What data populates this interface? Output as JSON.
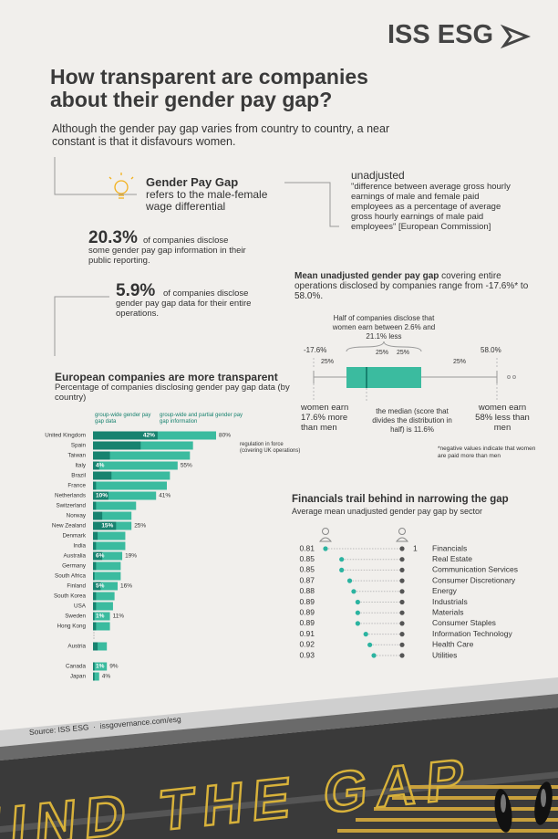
{
  "header": {
    "logo": "ISS ESG",
    "title": "How transparent are companies about their gender pay gap?",
    "intro": "Although the gender pay gap varies from country to country, a near constant is that it disfavours women."
  },
  "definition": {
    "term": "Gender Pay Gap",
    "text": "refers to the male-female wage differential"
  },
  "unadjusted": {
    "term": "unadjusted",
    "text": "\"difference between average gross hourly earnings of male and female paid employees as a percentage of average gross hourly earnings of male paid employees\" [European Commission]"
  },
  "stats": [
    {
      "figure": "20.3%",
      "text": "of companies disclose some gender pay gap information in their public reporting."
    },
    {
      "figure": "5.9%",
      "text": "of companies disclose gender pay gap data for their entire operations."
    }
  ],
  "distribution": {
    "title": "Mean unadjusted gender pay gap",
    "subtitle": "covering entire operations disclosed by companies range from -17.6%* to 58.0%.",
    "half_note": "Half of companies disclose that women earn between 2.6% and 21.1% less",
    "min_label": "-17.6%",
    "max_label": "58.0%",
    "quartile_labels": [
      "25%",
      "25%",
      "25%",
      "25%"
    ],
    "min_note": "women earn 17.6% more than men",
    "median_note": "the median (score that divides the distribution in half) is 11.6%",
    "max_note": "women earn 58% less than men",
    "footnote": "*negative values indicate that women are paid more than men"
  },
  "chart_data": [
    {
      "type": "bar",
      "title": "European companies are more transparent",
      "subtitle": "Percentage of companies disclosing gender pay gap data (by country)",
      "annotation": "regulation in force (covering UK operations)",
      "xlim": [
        0,
        80
      ],
      "categories": [
        "United Kingdom",
        "Spain",
        "Taiwan",
        "Italy",
        "Brazil",
        "France",
        "Netherlands",
        "Switzerland",
        "Norway",
        "New Zealand",
        "Denmark",
        "India",
        "Australia",
        "Germany",
        "South Africa",
        "Finland",
        "South Korea",
        "USA",
        "Sweden",
        "Hong Kong",
        "Austria",
        "Canada",
        "Japan"
      ],
      "series": [
        {
          "name": "group-wide and partial gender pay gap information",
          "color": "#3bbb9f",
          "values": [
            80,
            65,
            63,
            55,
            50,
            48,
            41,
            28,
            25,
            25,
            21,
            21,
            19,
            18,
            18,
            16,
            14,
            13,
            11,
            11,
            9,
            9,
            4
          ],
          "value_labels": [
            "80%",
            null,
            null,
            "55%",
            null,
            null,
            "41%",
            null,
            null,
            "25%",
            null,
            null,
            "19%",
            null,
            null,
            "16%",
            null,
            null,
            "11%",
            null,
            null,
            "9%",
            "4%"
          ]
        },
        {
          "name": "group-wide gender pay gap data",
          "color": "#17826f",
          "values": [
            42,
            31,
            11,
            4,
            12,
            2,
            10,
            2,
            6,
            15,
            3,
            2,
            6,
            2,
            1,
            5,
            2,
            2,
            1,
            2,
            3,
            1,
            1
          ],
          "value_labels": [
            "42%",
            null,
            null,
            "4%",
            null,
            null,
            "10%",
            null,
            null,
            "15%",
            null,
            null,
            "6%",
            null,
            null,
            "5%",
            null,
            null,
            "1%",
            null,
            null,
            "1%",
            null
          ]
        }
      ]
    },
    {
      "type": "dot",
      "title": "Financials trail behind in narrowing the gap",
      "subtitle": "Average mean unadjusted gender pay gap by sector",
      "xlim": [
        0.81,
        1
      ],
      "reference": 1,
      "color": "#2bb3a0",
      "reference_color": "#555555",
      "categories": [
        "Financials",
        "Real Estate",
        "Communication Services",
        "Consumer Discretionary",
        "Energy",
        "Industrials",
        "Materials",
        "Consumer Staples",
        "Information Technology",
        "Health Care",
        "Utilities"
      ],
      "values": [
        0.81,
        0.85,
        0.85,
        0.87,
        0.88,
        0.89,
        0.89,
        0.89,
        0.91,
        0.92,
        0.93
      ]
    }
  ],
  "footer": {
    "source": "Source: ISS ESG  ·  issgovernance.com/esg",
    "banner": "MIND THE GAP"
  }
}
